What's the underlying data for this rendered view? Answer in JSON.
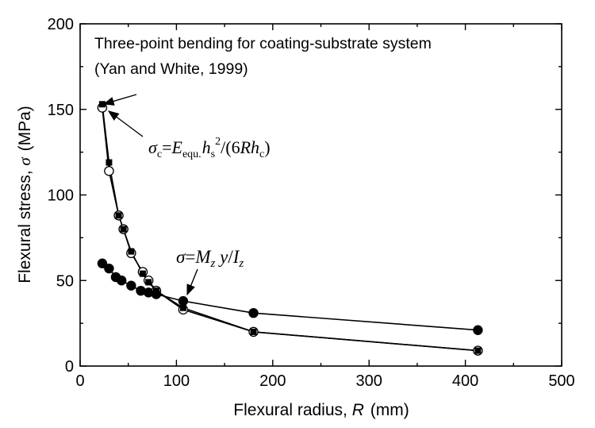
{
  "chart_data": {
    "type": "scatter",
    "title": "",
    "xlabel": "Flexural radius,",
    "xlabel_symbol": "R",
    "xlabel_unit": "(mm)",
    "ylabel": "Flexural stress,",
    "ylabel_symbol": "σ",
    "ylabel_unit": "(MPa)",
    "xlim": [
      0,
      500
    ],
    "ylim": [
      0,
      200
    ],
    "xticks": [
      "0",
      "100",
      "200",
      "300",
      "400",
      "500"
    ],
    "yticks": [
      "0",
      "50",
      "100",
      "150",
      "200"
    ],
    "grid": false,
    "annotations": {
      "reference_line1": "Three-point bending for coating-substrate system",
      "reference_line2": "(Yan and White, 1999)",
      "formula_coating": {
        "lhs": "σ",
        "lhs_sub": "c",
        "eq": "=",
        "E": "E",
        "E_sub": "equ.",
        "h": "h",
        "h_sub": "s",
        "h_sup": "2",
        "rest": "/(6",
        "R": "R",
        "h2": "h",
        "h2_sub": "c",
        "close": ")"
      },
      "formula_beam": {
        "lhs": "σ",
        "eq": "=",
        "M": "M",
        "M_sub": "z",
        "y": " y",
        "slash": "/",
        "I": "I",
        "I_sub": "z"
      }
    },
    "series": [
      {
        "marker": "filled-square",
        "points": [
          [
            23,
            153
          ],
          [
            30,
            119
          ],
          [
            40,
            88
          ],
          [
            45,
            80
          ],
          [
            53,
            67
          ],
          [
            65,
            54
          ],
          [
            71,
            49
          ],
          [
            79,
            44
          ],
          [
            107,
            34
          ],
          [
            180,
            20
          ],
          [
            413,
            9
          ]
        ]
      },
      {
        "marker": "open-circle",
        "points": [
          [
            23,
            151
          ],
          [
            30,
            114
          ],
          [
            40,
            88
          ],
          [
            45,
            80
          ],
          [
            53,
            66
          ],
          [
            65,
            55
          ],
          [
            71,
            50
          ],
          [
            79,
            44
          ],
          [
            107,
            33
          ],
          [
            180,
            20
          ],
          [
            413,
            9
          ]
        ]
      },
      {
        "marker": "filled-circle",
        "points": [
          [
            23,
            60
          ],
          [
            30,
            57
          ],
          [
            37,
            52
          ],
          [
            43,
            50
          ],
          [
            53,
            47
          ],
          [
            63,
            44
          ],
          [
            71,
            43
          ],
          [
            79,
            42
          ],
          [
            107,
            38
          ],
          [
            180,
            31
          ],
          [
            413,
            21
          ]
        ]
      }
    ]
  }
}
